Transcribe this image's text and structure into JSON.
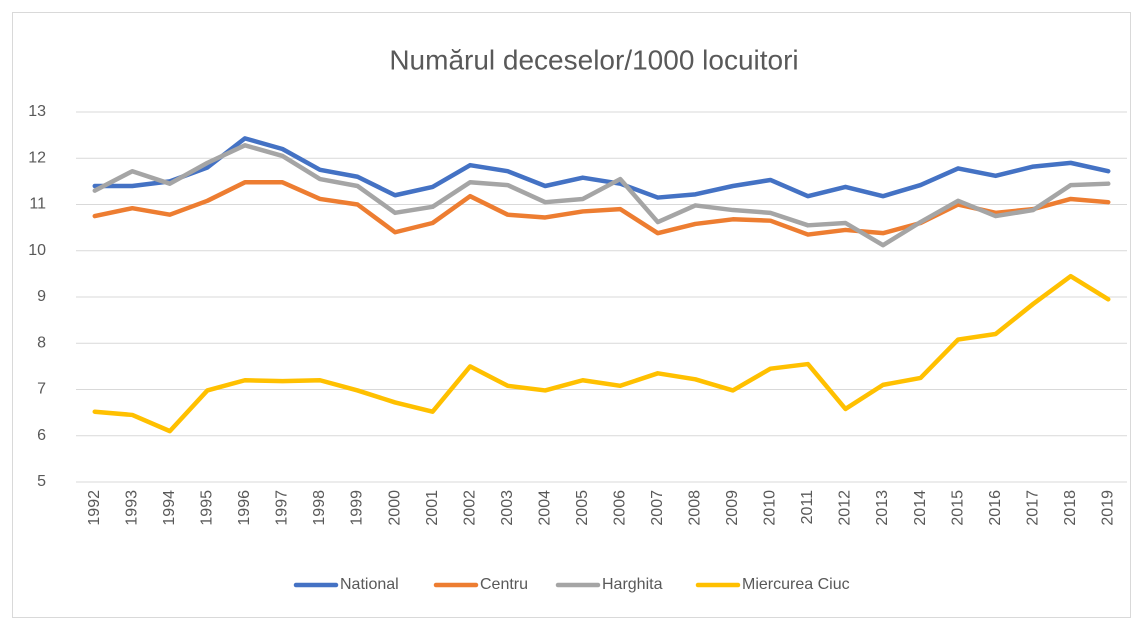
{
  "chart_data": {
    "type": "line",
    "title": "Numărul deceselor/1000 locuitori",
    "categories": [
      "1992",
      "1993",
      "1994",
      "1995",
      "1996",
      "1997",
      "1998",
      "1999",
      "2000",
      "2001",
      "2002",
      "2003",
      "2004",
      "2005",
      "2006",
      "2007",
      "2008",
      "2009",
      "2010",
      "2011",
      "2012",
      "2013",
      "2014",
      "2015",
      "2016",
      "2017",
      "2018",
      "2019"
    ],
    "series": [
      {
        "name": "National",
        "color": "#4472c4",
        "values": [
          11.4,
          11.4,
          11.5,
          11.8,
          12.43,
          12.2,
          11.75,
          11.6,
          11.2,
          11.38,
          11.85,
          11.72,
          11.4,
          11.58,
          11.45,
          11.15,
          11.22,
          11.4,
          11.53,
          11.18,
          11.38,
          11.18,
          11.42,
          11.78,
          11.62,
          11.82,
          11.9,
          11.72
        ]
      },
      {
        "name": "Centru",
        "color": "#ed7d31",
        "values": [
          10.75,
          10.92,
          10.78,
          11.08,
          11.48,
          11.48,
          11.12,
          11.0,
          10.4,
          10.6,
          11.18,
          10.78,
          10.72,
          10.85,
          10.9,
          10.38,
          10.58,
          10.68,
          10.65,
          10.35,
          10.45,
          10.38,
          10.6,
          11.0,
          10.82,
          10.9,
          11.12,
          11.05
        ]
      },
      {
        "name": "Harghita",
        "color": "#a5a5a5",
        "values": [
          11.3,
          11.72,
          11.45,
          11.9,
          12.28,
          12.05,
          11.55,
          11.4,
          10.82,
          10.95,
          11.48,
          11.42,
          11.05,
          11.12,
          11.55,
          10.62,
          10.98,
          10.88,
          10.82,
          10.55,
          10.6,
          10.12,
          10.62,
          11.08,
          10.75,
          10.88,
          11.42,
          11.45
        ]
      },
      {
        "name": "Miercurea Ciuc",
        "color": "#ffc000",
        "values": [
          6.52,
          6.45,
          6.1,
          6.98,
          7.2,
          7.18,
          7.2,
          6.98,
          6.72,
          6.52,
          7.5,
          7.08,
          6.98,
          7.2,
          7.08,
          7.35,
          7.22,
          6.98,
          7.45,
          7.55,
          6.58,
          7.1,
          7.25,
          8.08,
          8.2,
          8.85,
          9.45,
          8.95
        ]
      }
    ],
    "ylim": [
      5,
      13
    ],
    "yticks": [
      5,
      6,
      7,
      8,
      9,
      10,
      11,
      12,
      13
    ],
    "grid": true,
    "legend": "bottom"
  }
}
